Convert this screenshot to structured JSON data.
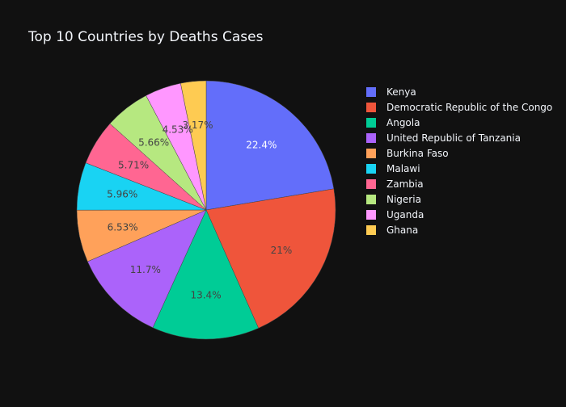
{
  "chart_data": {
    "type": "pie",
    "title": "Top 10 Countries by Deaths Cases",
    "categories": [
      "Kenya",
      "Democratic Republic of the Congo",
      "Angola",
      "United Republic of Tanzania",
      "Burkina Faso",
      "Malawi",
      "Zambia",
      "Nigeria",
      "Uganda",
      "Ghana"
    ],
    "values": [
      22.4,
      21.0,
      13.4,
      11.7,
      6.53,
      5.96,
      5.71,
      5.66,
      4.53,
      3.17
    ],
    "labels": [
      "22.4%",
      "21%",
      "13.4%",
      "11.7%",
      "6.53%",
      "5.96%",
      "5.71%",
      "5.66%",
      "4.53%",
      "3.17%"
    ],
    "colors": [
      "#636efa",
      "#EF553B",
      "#00cc96",
      "#ab63fa",
      "#FFA15A",
      "#19d3f3",
      "#FF6692",
      "#B6E880",
      "#FF97FF",
      "#FECB52"
    ],
    "legend_position": "right",
    "direction": "clockwise",
    "start_angle": "top"
  }
}
